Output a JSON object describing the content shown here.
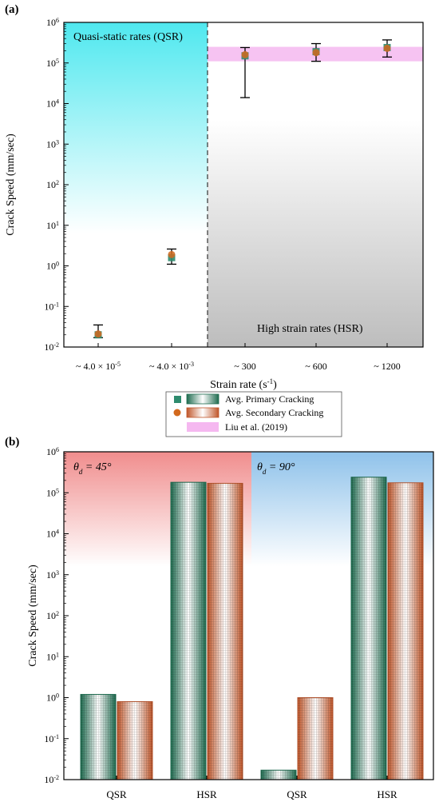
{
  "chart_data": [
    {
      "panel_label": "(a)",
      "type": "scatter",
      "y_scale": "log",
      "ylim": [
        0.01,
        1000000
      ],
      "ylabel": "Crack Speed (mm/sec)",
      "xlabel_text": "Strain rate (s",
      "xlabel_sup": "-1",
      "xlabel_close": ")",
      "categories": [
        {
          "base": "~ 4.0 × 10",
          "sup": "-5"
        },
        {
          "base": "~ 4.0 × 10",
          "sup": "-3"
        },
        {
          "base": "~ 300",
          "sup": ""
        },
        {
          "base": "~ 600",
          "sup": ""
        },
        {
          "base": "~ 1200",
          "sup": ""
        }
      ],
      "series": [
        {
          "name": "Avg. Primary Cracking",
          "marker": "square",
          "color": "#2e8b6e",
          "values": [
            0.02,
            1.6,
            150000,
            190000,
            240000
          ]
        },
        {
          "name": "Avg. Secondary Cracking",
          "marker": "circle",
          "color": "#d2691e",
          "values": [
            0.021,
            1.9,
            160000,
            180000,
            230000
          ]
        }
      ],
      "error_bars": [
        {
          "low": 0.017,
          "high": 0.035
        },
        {
          "low": 1.1,
          "high": 2.6
        },
        {
          "low": 14000,
          "high": 240000
        },
        {
          "low": 110000,
          "high": 300000
        },
        {
          "low": 140000,
          "high": 370000
        }
      ],
      "reference_band": {
        "name": "Liu et al. (2019)",
        "low": 110000,
        "high": 250000,
        "color": "#f5b8f0"
      },
      "regions": [
        {
          "label": "Quasi-static rates (QSR)",
          "color": "#4fe8ef"
        },
        {
          "label": "High strain rates (HSR)",
          "color": "#bdbdbd"
        }
      ],
      "legend_position": "bottom-center"
    },
    {
      "panel_label": "(b)",
      "type": "bar",
      "y_scale": "log",
      "ylim": [
        0.01,
        1000000
      ],
      "ylabel": "Crack Speed (mm/sec)",
      "categories": [
        "QSR",
        "HSR",
        "QSR",
        "HSR"
      ],
      "groups": [
        {
          "label_symbol": "θ",
          "label_sub": "d",
          "label_value": " = 45°",
          "color": "#f08d8d"
        },
        {
          "label_symbol": "θ",
          "label_sub": "d",
          "label_value": " = 90°",
          "color": "#8fc2ea"
        }
      ],
      "series": [
        {
          "name": "Avg. Primary Cracking",
          "color": "#2e7d5e",
          "values": [
            1.2,
            180000,
            0.017,
            240000
          ]
        },
        {
          "name": "Avg. Secondary Cracking",
          "color": "#c8643c",
          "values": [
            0.8,
            170000,
            1.0,
            175000
          ]
        }
      ]
    }
  ]
}
